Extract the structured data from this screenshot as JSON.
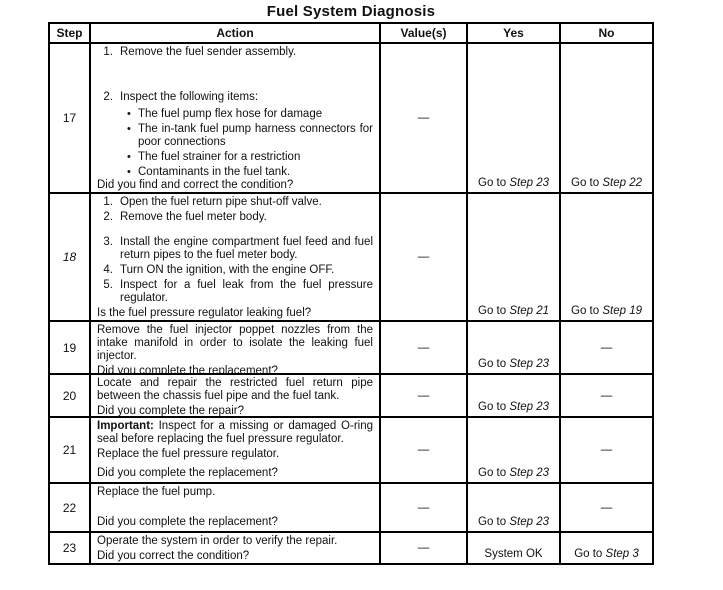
{
  "title": "Fuel System Diagnosis",
  "table": {
    "headers": [
      "Step",
      "Action",
      "Value(s)",
      "Yes",
      "No"
    ],
    "rows": [
      {
        "step": "17",
        "action": {
          "numbered": [
            {
              "num": "1.",
              "text": "Remove the fuel sender assembly."
            },
            {
              "num": "2.",
              "text": "Inspect the following items:"
            }
          ],
          "bullets": [
            "The fuel pump flex hose for damage",
            "The in-tank fuel pump harness connectors for poor connections",
            "The fuel strainer for a restriction",
            "Contaminants in the fuel tank."
          ],
          "question": "Did you find and correct the condition?"
        },
        "value": "—",
        "yes": {
          "text": "Go to",
          "italic": "Step 23"
        },
        "no": {
          "text": "Go to",
          "italic": "Step 22"
        }
      },
      {
        "step": "18",
        "action": {
          "numbered": [
            {
              "num": "1.",
              "text": "Open the fuel return pipe shut-off valve."
            },
            {
              "num": "2.",
              "text": "Remove the fuel meter body."
            },
            {
              "num": "3.",
              "text": "Install the engine compartment fuel feed and fuel return pipes to the fuel meter body."
            },
            {
              "num": "4.",
              "text": "Turn ON the ignition, with the engine OFF."
            },
            {
              "num": "5.",
              "text": "Inspect for a fuel leak from the fuel pressure regulator."
            }
          ],
          "question": "Is the fuel pressure regulator leaking fuel?"
        },
        "value": "—",
        "yes": {
          "text": "Go to",
          "italic": "Step 21"
        },
        "no": {
          "text": "Go to",
          "italic": "Step 19"
        }
      },
      {
        "step": "19",
        "action": {
          "paragraph": "Remove the fuel injector poppet nozzles from the intake manifold in order to isolate the leaking fuel injector.",
          "question": "Did you complete the replacement?"
        },
        "value": "—",
        "yes": {
          "text": "Go to",
          "italic": "Step 23"
        },
        "no": {
          "text": "—",
          "italic": ""
        }
      },
      {
        "step": "20",
        "action": {
          "paragraph": "Locate and repair the restricted fuel return pipe between the chassis fuel pipe and the fuel tank.",
          "question": "Did you complete the repair?"
        },
        "value": "—",
        "yes": {
          "text": "Go to",
          "italic": "Step 23"
        },
        "no": {
          "text": "—",
          "italic": ""
        }
      },
      {
        "step": "21",
        "action": {
          "important_label": "Important:",
          "important_text": " Inspect for a missing or damaged O-ring seal before replacing the fuel pressure regulator.",
          "paragraph": "Replace the fuel pressure regulator.",
          "question": "Did you complete the replacement?"
        },
        "value": "—",
        "yes": {
          "text": "Go to",
          "italic": "Step 23"
        },
        "no": {
          "text": "—",
          "italic": ""
        }
      },
      {
        "step": "22",
        "action": {
          "paragraph": "Replace the fuel pump.",
          "question": "Did you complete the replacement?"
        },
        "value": "—",
        "yes": {
          "text": "Go to",
          "italic": "Step 23"
        },
        "no": {
          "text": "—",
          "italic": ""
        }
      },
      {
        "step": "23",
        "action": {
          "paragraph": "Operate the system in order to verify the repair.",
          "question": "Did you correct the condition?"
        },
        "value": "—",
        "yes": {
          "text": "System OK",
          "italic": ""
        },
        "no": {
          "text": "Go to",
          "italic": "Step 3"
        }
      }
    ]
  }
}
